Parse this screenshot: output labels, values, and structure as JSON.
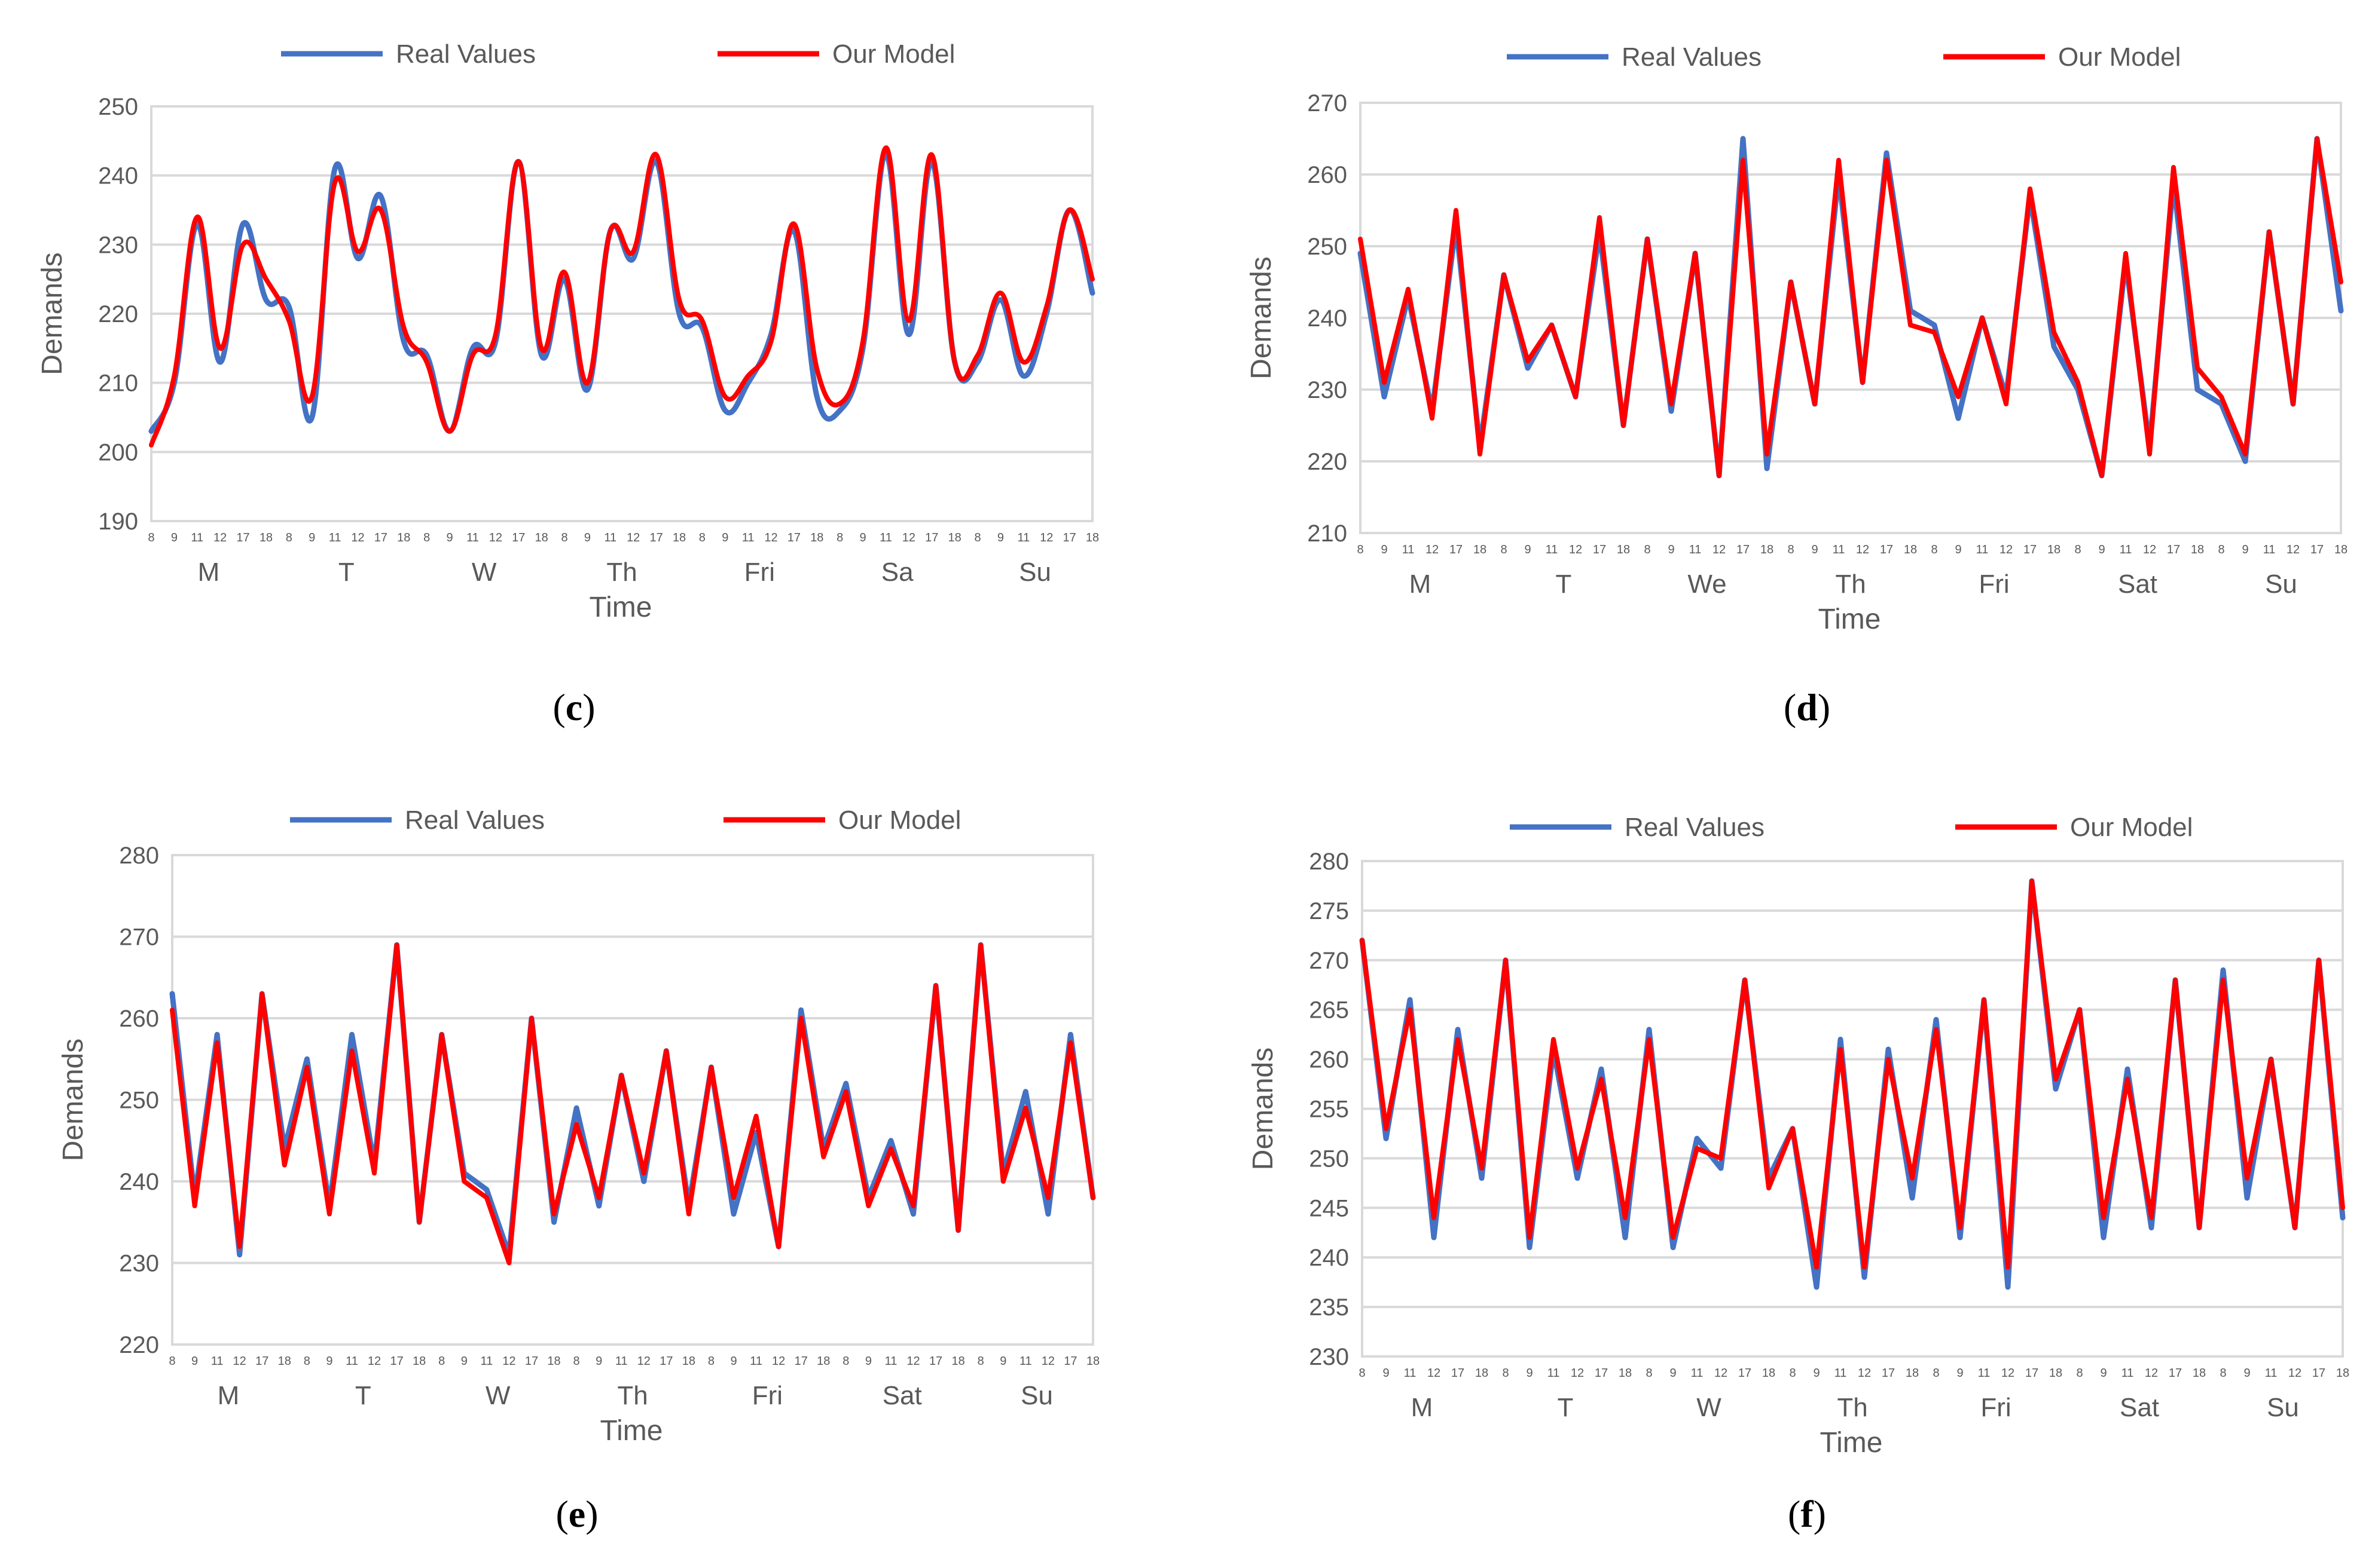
{
  "colors": {
    "real": "#4472C4",
    "model": "#FF0000",
    "grid": "#d9d9d9",
    "text": "#595959"
  },
  "chart_data": [
    {
      "panel": "c",
      "type": "line",
      "legend": [
        "Real Values",
        "Our Model"
      ],
      "ylabel": "Demands",
      "xlabel": "Time",
      "ylim": [
        190,
        250
      ],
      "yticks": [
        190,
        200,
        210,
        220,
        230,
        240,
        250
      ],
      "hours": [
        "8",
        "9",
        "11",
        "12",
        "17",
        "18"
      ],
      "days": [
        "M",
        "T",
        "W",
        "Th",
        "Fri",
        "Sa",
        "Su"
      ],
      "smooth": true,
      "series": [
        {
          "name": "Real Values",
          "values": [
            203,
            210,
            233,
            213,
            233,
            222,
            221,
            205,
            241,
            228,
            237,
            216,
            214,
            203,
            215,
            216,
            242,
            214,
            225,
            209,
            232,
            228,
            242,
            220,
            218,
            206,
            210,
            217,
            232,
            208,
            206,
            215,
            243,
            217,
            242,
            213,
            213,
            222,
            211,
            220,
            235,
            223
          ]
        },
        {
          "name": "Our Model",
          "values": [
            201,
            211,
            234,
            215,
            230,
            225,
            219,
            208,
            239,
            229,
            235,
            218,
            213,
            203,
            214,
            217,
            242,
            215,
            226,
            210,
            232,
            229,
            243,
            222,
            219,
            208,
            211,
            216,
            233,
            212,
            207,
            216,
            244,
            219,
            243,
            213,
            214,
            223,
            213,
            221,
            235,
            225
          ]
        }
      ]
    },
    {
      "panel": "d",
      "type": "line",
      "legend": [
        "Real Values",
        "Our Model"
      ],
      "ylabel": "Demands",
      "xlabel": "Time",
      "ylim": [
        210,
        270
      ],
      "yticks": [
        210,
        220,
        230,
        240,
        250,
        260,
        270
      ],
      "hours": [
        "8",
        "9",
        "11",
        "12",
        "17",
        "18"
      ],
      "days": [
        "M",
        "T",
        "We",
        "Th",
        "Fri",
        "Sat",
        "Su"
      ],
      "smooth": false,
      "series": [
        {
          "name": "Real Values",
          "values": [
            249,
            229,
            243,
            227,
            253,
            222,
            246,
            233,
            239,
            229,
            252,
            225,
            251,
            227,
            249,
            218,
            265,
            219,
            245,
            228,
            260,
            231,
            263,
            241,
            239,
            226,
            240,
            229,
            257,
            236,
            230,
            218,
            248,
            222,
            259,
            230,
            228,
            220,
            252,
            228,
            265,
            241
          ]
        },
        {
          "name": "Our Model",
          "values": [
            251,
            231,
            244,
            226,
            255,
            221,
            246,
            234,
            239,
            229,
            254,
            225,
            251,
            228,
            249,
            218,
            262,
            221,
            245,
            228,
            262,
            231,
            262,
            239,
            238,
            229,
            240,
            228,
            258,
            238,
            231,
            218,
            249,
            221,
            261,
            233,
            229,
            221,
            252,
            228,
            265,
            245
          ]
        }
      ]
    },
    {
      "panel": "e",
      "type": "line",
      "legend": [
        "Real Values",
        "Our Model"
      ],
      "ylabel": "Demands",
      "xlabel": "Time",
      "ylim": [
        220,
        280
      ],
      "yticks": [
        220,
        230,
        240,
        250,
        260,
        270,
        280
      ],
      "hours": [
        "8",
        "9",
        "11",
        "12",
        "17",
        "18"
      ],
      "days": [
        "M",
        "T",
        "W",
        "Th",
        "Fri",
        "Sat",
        "Su"
      ],
      "smooth": false,
      "series": [
        {
          "name": "Real Values",
          "values": [
            263,
            238,
            258,
            231,
            263,
            244,
            255,
            237,
            258,
            242,
            269,
            235,
            258,
            241,
            239,
            231,
            260,
            235,
            249,
            237,
            253,
            240,
            256,
            237,
            254,
            236,
            246,
            232,
            261,
            244,
            252,
            238,
            245,
            236,
            264,
            234,
            269,
            241,
            251,
            236,
            258,
            238
          ]
        },
        {
          "name": "Our Model",
          "values": [
            261,
            237,
            257,
            232,
            263,
            242,
            254,
            236,
            256,
            241,
            269,
            235,
            258,
            240,
            238,
            230,
            260,
            236,
            247,
            238,
            253,
            241,
            256,
            236,
            254,
            238,
            248,
            232,
            260,
            243,
            251,
            237,
            244,
            237,
            264,
            234,
            269,
            240,
            249,
            238,
            257,
            238
          ]
        }
      ]
    },
    {
      "panel": "f",
      "type": "line",
      "legend": [
        "Real Values",
        "Our Model"
      ],
      "ylabel": "Demands",
      "xlabel": "Time",
      "ylim": [
        230,
        280
      ],
      "yticks": [
        230,
        235,
        240,
        245,
        250,
        255,
        260,
        265,
        270,
        275,
        280
      ],
      "hours": [
        "8",
        "9",
        "11",
        "12",
        "17",
        "18"
      ],
      "days": [
        "M",
        "T",
        "W",
        "Th",
        "Fri",
        "Sat",
        "Su"
      ],
      "smooth": false,
      "series": [
        {
          "name": "Real Values",
          "values": [
            272,
            252,
            266,
            242,
            263,
            248,
            270,
            241,
            261,
            248,
            259,
            242,
            263,
            241,
            252,
            249,
            268,
            248,
            253,
            237,
            262,
            238,
            261,
            246,
            264,
            242,
            266,
            237,
            278,
            257,
            265,
            242,
            259,
            243,
            268,
            243,
            269,
            246,
            260,
            243,
            270,
            244
          ]
        },
        {
          "name": "Our Model",
          "values": [
            272,
            253,
            265,
            244,
            262,
            249,
            270,
            242,
            262,
            249,
            258,
            244,
            262,
            242,
            251,
            250,
            268,
            247,
            253,
            239,
            261,
            239,
            260,
            248,
            263,
            243,
            266,
            239,
            278,
            258,
            265,
            244,
            258,
            244,
            268,
            243,
            268,
            248,
            260,
            243,
            270,
            245
          ]
        }
      ]
    }
  ]
}
